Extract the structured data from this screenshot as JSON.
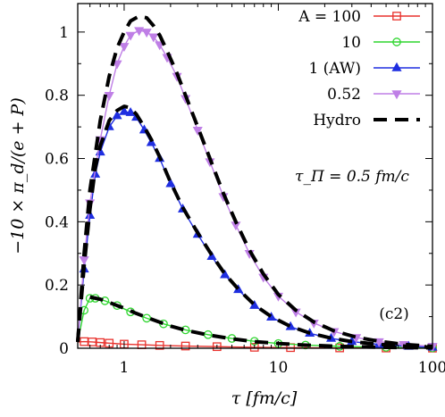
{
  "chart_data": {
    "type": "line",
    "xscale": "log",
    "xlim": [
      0.5,
      100
    ],
    "ylim": [
      0,
      1.09
    ],
    "xlabel": "τ [fm/c]",
    "ylabel": "−10 × π_d/(e + P)",
    "xticks": [
      1,
      10,
      100
    ],
    "xtick_labels": [
      "1",
      "10",
      "100"
    ],
    "yticks": [
      0,
      0.2,
      0.4,
      0.6,
      0.8,
      1
    ],
    "ytick_labels": [
      "0",
      "0.2",
      "0.4",
      "0.6",
      "0.8",
      "1"
    ],
    "annotations": [
      "τ_Π = 0.5 fm/c",
      "(c2)"
    ],
    "legend_position": "top-right",
    "grid": false,
    "series": [
      {
        "name": "A = 100",
        "color": "#e8322d",
        "marker": "square",
        "style": "solid",
        "x": [
          0.5,
          0.55,
          0.62,
          0.7,
          0.8,
          1.0,
          1.3,
          1.7,
          2.5,
          4,
          7,
          12,
          25,
          50,
          100
        ],
        "y": [
          0.02,
          0.021,
          0.02,
          0.018,
          0.016,
          0.013,
          0.011,
          0.009,
          0.007,
          0.005,
          0.003,
          0.002,
          0.001,
          0.0007,
          0.0004
        ]
      },
      {
        "name": "10",
        "color": "#2fd62f",
        "marker": "circle",
        "style": "solid",
        "x": [
          0.5,
          0.55,
          0.6,
          0.65,
          0.75,
          0.9,
          1.1,
          1.4,
          1.8,
          2.5,
          3.5,
          5,
          7,
          10,
          15,
          25,
          50,
          100
        ],
        "y": [
          0.02,
          0.12,
          0.158,
          0.158,
          0.15,
          0.135,
          0.115,
          0.095,
          0.077,
          0.058,
          0.043,
          0.031,
          0.022,
          0.015,
          0.01,
          0.006,
          0.003,
          0.001
        ]
      },
      {
        "name": "1 (AW)",
        "color": "#1f2ee0",
        "marker": "triangle-up",
        "style": "solid",
        "x": [
          0.5,
          0.55,
          0.6,
          0.65,
          0.7,
          0.8,
          0.9,
          1.0,
          1.1,
          1.2,
          1.35,
          1.5,
          1.7,
          2.0,
          2.4,
          3.0,
          3.7,
          4.5,
          5.5,
          7,
          9,
          12,
          16,
          22,
          30,
          45,
          70,
          100
        ],
        "y": [
          0.02,
          0.25,
          0.42,
          0.55,
          0.62,
          0.7,
          0.735,
          0.748,
          0.745,
          0.73,
          0.69,
          0.65,
          0.6,
          0.52,
          0.44,
          0.36,
          0.29,
          0.232,
          0.185,
          0.135,
          0.098,
          0.068,
          0.047,
          0.031,
          0.021,
          0.012,
          0.006,
          0.003
        ]
      },
      {
        "name": "0.52",
        "color": "#bf7fe6",
        "marker": "triangle-down",
        "style": "solid",
        "x": [
          0.5,
          0.55,
          0.6,
          0.7,
          0.8,
          0.9,
          1.0,
          1.1,
          1.25,
          1.4,
          1.55,
          1.7,
          1.9,
          2.2,
          2.5,
          3.0,
          3.6,
          4.4,
          5.3,
          6.5,
          8,
          10,
          13,
          17,
          23,
          32,
          45,
          65,
          100
        ],
        "y": [
          0.02,
          0.28,
          0.46,
          0.66,
          0.8,
          0.9,
          0.955,
          0.99,
          1.005,
          1.0,
          0.985,
          0.96,
          0.92,
          0.86,
          0.79,
          0.69,
          0.59,
          0.48,
          0.39,
          0.3,
          0.225,
          0.165,
          0.115,
          0.08,
          0.053,
          0.034,
          0.021,
          0.012,
          0.006
        ]
      },
      {
        "name": "Hydro",
        "color": "#000000",
        "marker": "none",
        "style": "dashed",
        "x": [
          0.5,
          0.55,
          0.6,
          0.7,
          0.8,
          0.9,
          1.0,
          1.1,
          1.25,
          1.4,
          1.55,
          1.7,
          1.9,
          2.2,
          2.5,
          3.0,
          3.6,
          4.4,
          5.3,
          6.5,
          8,
          10,
          13,
          17,
          23,
          32,
          45,
          65,
          100
        ],
        "y": [
          0.02,
          0.3,
          0.5,
          0.72,
          0.86,
          0.95,
          1.0,
          1.035,
          1.05,
          1.045,
          1.02,
          0.99,
          0.94,
          0.87,
          0.8,
          0.7,
          0.6,
          0.49,
          0.4,
          0.31,
          0.235,
          0.17,
          0.12,
          0.083,
          0.055,
          0.035,
          0.022,
          0.012,
          0.006
        ]
      },
      {
        "name": "",
        "color": "#000000",
        "marker": "none",
        "style": "dashed",
        "x": [
          0.5,
          0.55,
          0.6,
          0.65,
          0.7,
          0.8,
          0.9,
          1.0,
          1.1,
          1.2,
          1.35,
          1.5,
          1.7,
          2.0,
          2.4,
          3.0,
          3.7,
          4.5,
          5.5,
          7,
          9,
          12,
          16,
          22,
          30,
          45,
          70,
          100
        ],
        "y": [
          0.02,
          0.26,
          0.44,
          0.57,
          0.64,
          0.72,
          0.752,
          0.765,
          0.76,
          0.74,
          0.7,
          0.66,
          0.605,
          0.525,
          0.445,
          0.365,
          0.295,
          0.235,
          0.187,
          0.137,
          0.1,
          0.069,
          0.048,
          0.032,
          0.021,
          0.012,
          0.006,
          0.003
        ]
      },
      {
        "name": "",
        "color": "#000000",
        "marker": "none",
        "style": "dashed",
        "x": [
          0.6,
          0.7,
          0.8,
          0.9,
          1.0,
          1.2,
          1.5,
          2.0,
          2.5,
          3.5,
          5,
          7,
          10,
          15,
          25,
          50,
          100
        ],
        "y": [
          0.162,
          0.155,
          0.145,
          0.135,
          0.127,
          0.11,
          0.092,
          0.07,
          0.057,
          0.042,
          0.03,
          0.021,
          0.015,
          0.01,
          0.006,
          0.003,
          0.001
        ]
      }
    ]
  }
}
